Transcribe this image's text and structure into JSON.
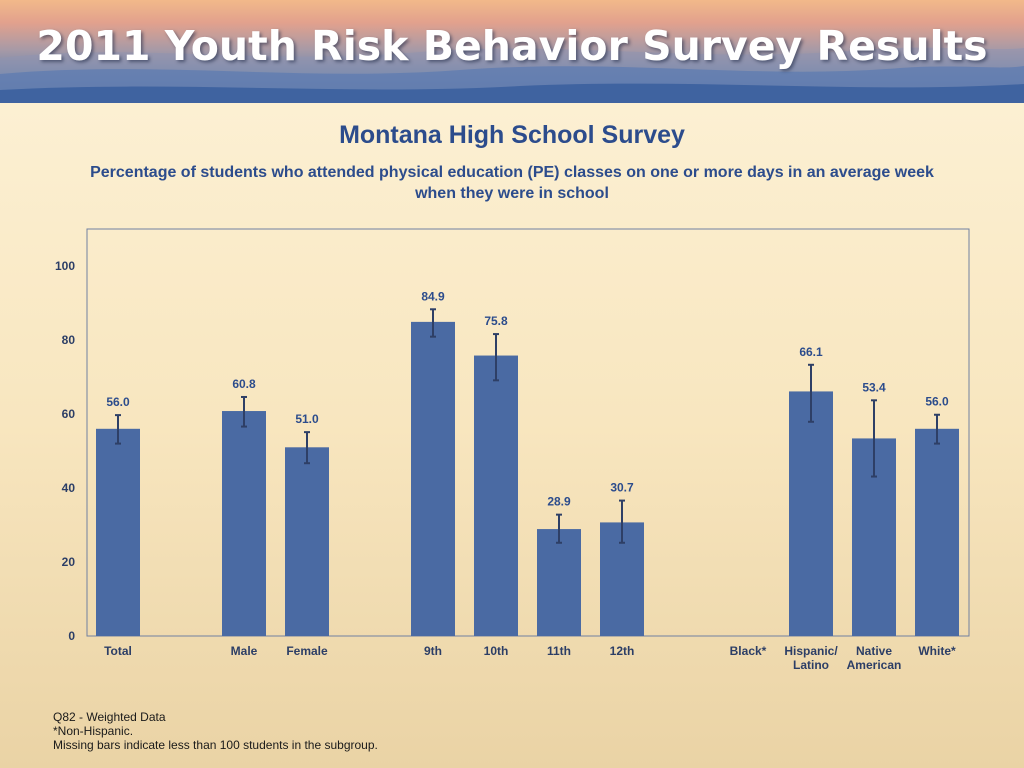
{
  "banner": {
    "title": "2011 Youth Risk Behavior Survey Results"
  },
  "colors": {
    "bar": "#4a6aa3",
    "error_bar": "#2e3f66",
    "frame": "#7080a0",
    "title": "#2c4c8c"
  },
  "chart_data": {
    "type": "bar",
    "title": "Montana High School Survey",
    "subtitle": "Percentage of students who attended physical education (PE) classes on one or more days in an average week when they were in school",
    "xlabel": "",
    "ylabel": "",
    "ylim": [
      0,
      110
    ],
    "yticks": [
      0,
      20,
      40,
      60,
      80,
      100
    ],
    "grid": false,
    "legend": "none",
    "categories": [
      {
        "label": [
          "Total"
        ],
        "value": 56.0,
        "err_low": 52.0,
        "err_high": 59.7
      },
      {
        "label": [
          "Male"
        ],
        "value": 60.8,
        "err_low": 56.6,
        "err_high": 64.6
      },
      {
        "label": [
          "Female"
        ],
        "value": 51.0,
        "err_low": 46.7,
        "err_high": 55.1
      },
      {
        "label": [
          "9th"
        ],
        "value": 84.9,
        "err_low": 80.9,
        "err_high": 88.3
      },
      {
        "label": [
          "10th"
        ],
        "value": 75.8,
        "err_low": 69.1,
        "err_high": 81.6
      },
      {
        "label": [
          "11th"
        ],
        "value": 28.9,
        "err_low": 25.2,
        "err_high": 32.8
      },
      {
        "label": [
          "12th"
        ],
        "value": 30.7,
        "err_low": 25.2,
        "err_high": 36.6
      },
      {
        "label": [
          "Black*"
        ],
        "value": null
      },
      {
        "label": [
          "Hispanic/",
          "Latino"
        ],
        "value": 66.1,
        "err_low": 57.9,
        "err_high": 73.3
      },
      {
        "label": [
          "Native",
          "American"
        ],
        "value": 53.4,
        "err_low": 43.1,
        "err_high": 63.7
      },
      {
        "label": [
          "White*"
        ],
        "value": 56.0,
        "err_low": 52.0,
        "err_high": 59.8
      }
    ]
  },
  "footnotes": [
    "Q82 - Weighted Data",
    "*Non-Hispanic.",
    "Missing bars indicate less than 100 students in the subgroup."
  ]
}
